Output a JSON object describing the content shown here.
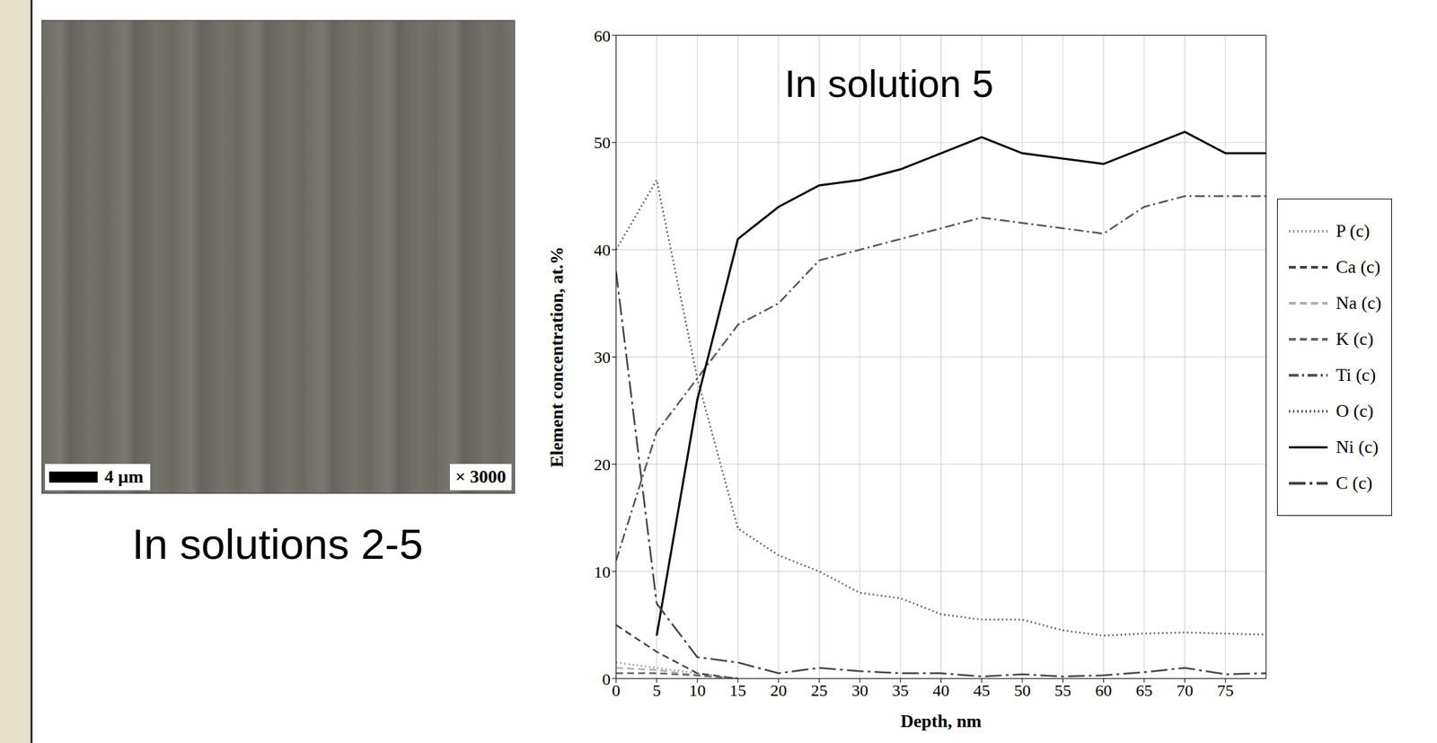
{
  "image_panel": {
    "scale_bar": "4 µm",
    "magnification": "× 3000",
    "caption": "In solutions 2-5"
  },
  "chart_data": {
    "type": "line",
    "title": "In solution 5",
    "x_label": "Depth, nm",
    "y_label": "Element  concentration, at.%",
    "x": [
      0,
      5,
      10,
      15,
      20,
      25,
      30,
      35,
      40,
      45,
      50,
      55,
      60,
      65,
      70,
      75,
      80
    ],
    "xlim": [
      0,
      80
    ],
    "xticks": [
      0,
      5,
      10,
      15,
      20,
      25,
      30,
      35,
      40,
      45,
      50,
      55,
      60,
      65,
      70,
      75
    ],
    "ylim": [
      0,
      60
    ],
    "yticks": [
      0,
      10,
      20,
      30,
      40,
      50,
      60
    ],
    "grid": true,
    "legend": "right",
    "series": [
      {
        "name": "P (c)",
        "color": "#999999",
        "line_style": "dotted",
        "values": [
          1.5,
          1,
          0.5,
          0,
          null,
          null,
          null,
          null,
          null,
          null,
          null,
          null,
          null,
          null,
          null,
          null,
          null
        ]
      },
      {
        "name": "Ca (c)",
        "color": "#444444",
        "line_style": "dashed",
        "values": [
          5,
          2.5,
          0.5,
          0,
          null,
          null,
          null,
          null,
          null,
          null,
          null,
          null,
          null,
          null,
          null,
          null,
          null
        ]
      },
      {
        "name": "Na (c)",
        "color": "#b0b0b0",
        "line_style": "dashed",
        "values": [
          1,
          0.8,
          0.3,
          0,
          null,
          null,
          null,
          null,
          null,
          null,
          null,
          null,
          null,
          null,
          null,
          null,
          null
        ]
      },
      {
        "name": "K (c)",
        "color": "#666666",
        "line_style": "dashed",
        "values": [
          0.5,
          0.5,
          0.3,
          0,
          null,
          null,
          null,
          null,
          null,
          null,
          null,
          null,
          null,
          null,
          null,
          null,
          null
        ]
      },
      {
        "name": "Ti (c)",
        "color": "#555555",
        "line_style": "dashdot",
        "values": [
          11,
          23,
          28,
          33,
          35,
          39,
          40,
          41,
          42,
          43,
          42.5,
          42,
          41.5,
          44,
          45,
          45,
          45
        ]
      },
      {
        "name": "O (c)",
        "color": "#555555",
        "line_style": "dotted",
        "values": [
          40,
          46.5,
          28,
          14,
          11.5,
          10,
          8,
          7.5,
          6,
          5.5,
          5.5,
          4.5,
          4,
          4.2,
          4.3,
          4.2,
          4.1
        ]
      },
      {
        "name": "Ni (c)",
        "color": "#000000",
        "line_style": "solid",
        "values": [
          null,
          4,
          26,
          41,
          44,
          46,
          46.5,
          47.5,
          49,
          50.5,
          49,
          48.5,
          48,
          49.5,
          51,
          49,
          49
        ]
      },
      {
        "name": "C (c)",
        "color": "#444444",
        "line_style": "longdashdot",
        "values": [
          38,
          7,
          2,
          1.5,
          0.5,
          1,
          0.7,
          0.5,
          0.5,
          0.2,
          0.4,
          0.2,
          0.3,
          0.6,
          1,
          0.4,
          0.5
        ]
      }
    ]
  }
}
